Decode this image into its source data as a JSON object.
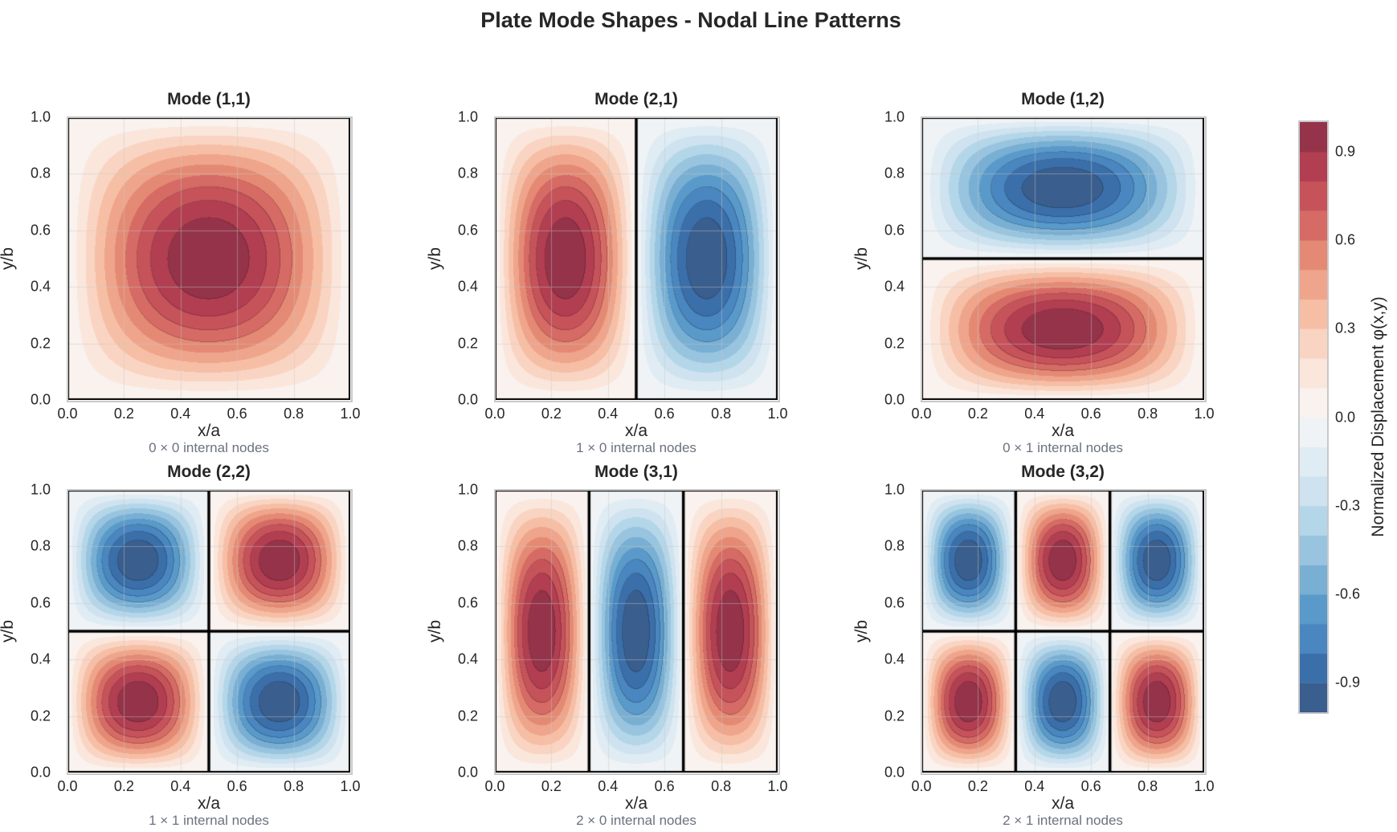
{
  "title": "Plate Mode Shapes - Nodal Line Patterns",
  "colors": [
    "#3a5e8d",
    "#3b6faa",
    "#4a86bf",
    "#5a9aca",
    "#78afd3",
    "#98c4df",
    "#b3d6e8",
    "#cee2ef",
    "#e0ecf3",
    "#eff3f6",
    "#f9f2ef",
    "#fbe6dc",
    "#fad4c2",
    "#f6bfa5",
    "#eea58c",
    "#e48a74",
    "#d66b65",
    "#c6525a",
    "#b13e51",
    "#943349"
  ],
  "chart_data": {
    "type": "heatmap",
    "function": "sin(m*pi*x/a)*sin(n*pi*y/b)",
    "levels": {
      "min": -1.0,
      "max": 1.0,
      "step": 0.1
    },
    "xlabel": "x/a",
    "ylabel": "y/b",
    "xlim": [
      0,
      1
    ],
    "ylim": [
      0,
      1
    ],
    "ticks": [
      "0.0",
      "0.2",
      "0.4",
      "0.6",
      "0.8",
      "1.0"
    ],
    "grid": true,
    "panels": [
      {
        "title": "Mode (1,1)",
        "m": 1,
        "n": 1,
        "note": "0 × 0 internal nodes"
      },
      {
        "title": "Mode (2,1)",
        "m": 2,
        "n": 1,
        "note": "1 × 0 internal nodes"
      },
      {
        "title": "Mode (1,2)",
        "m": 1,
        "n": 2,
        "note": "0 × 1 internal nodes"
      },
      {
        "title": "Mode (2,2)",
        "m": 2,
        "n": 2,
        "note": "1 × 1 internal nodes"
      },
      {
        "title": "Mode (3,1)",
        "m": 3,
        "n": 1,
        "note": "2 × 0 internal nodes"
      },
      {
        "title": "Mode (3,2)",
        "m": 3,
        "n": 2,
        "note": "2 × 1 internal nodes"
      }
    ],
    "colorbar": {
      "label": "Normalized Displacement φ(x,y)",
      "ticks": [
        "0.9",
        "0.6",
        "0.3",
        "0.0",
        "-0.3",
        "-0.6",
        "-0.9"
      ],
      "tick_values": [
        0.9,
        0.6,
        0.3,
        0.0,
        -0.3,
        -0.6,
        -0.9
      ],
      "range": [
        -1,
        1
      ]
    }
  }
}
